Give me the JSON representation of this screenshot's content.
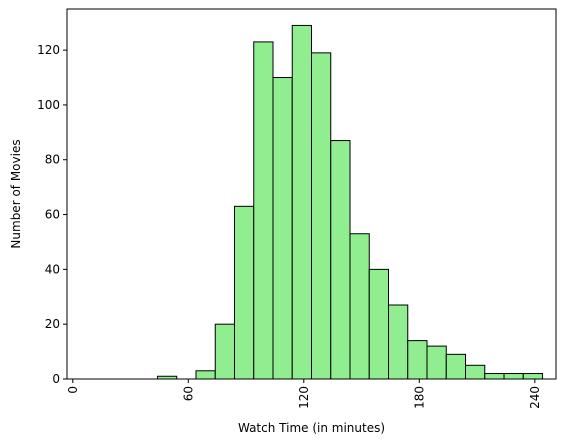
{
  "chart_data": {
    "type": "bar",
    "title": "",
    "xlabel": "Watch Time (in minutes)",
    "ylabel": "Number of Movies",
    "xlim": [
      -3,
      251
    ],
    "ylim": [
      0,
      135
    ],
    "grid": false,
    "bar_color": "#90ee90",
    "edge_color": "#000000",
    "x_ticks": [
      {
        "value": 0,
        "label": "0"
      },
      {
        "value": 60,
        "label": "60"
      },
      {
        "value": 120,
        "label": "120"
      },
      {
        "value": 180,
        "label": "180"
      },
      {
        "value": 240,
        "label": "240"
      }
    ],
    "y_ticks": [
      {
        "value": 0,
        "label": "0"
      },
      {
        "value": 20,
        "label": "20"
      },
      {
        "value": 40,
        "label": "40"
      },
      {
        "value": 60,
        "label": "60"
      },
      {
        "value": 80,
        "label": "80"
      },
      {
        "value": 100,
        "label": "100"
      },
      {
        "value": 120,
        "label": "120"
      }
    ],
    "bins": [
      {
        "x0": 44,
        "x1": 54,
        "count": 1
      },
      {
        "x0": 54,
        "x1": 64,
        "count": 0
      },
      {
        "x0": 64,
        "x1": 74,
        "count": 3
      },
      {
        "x0": 74,
        "x1": 84,
        "count": 20
      },
      {
        "x0": 84,
        "x1": 94,
        "count": 63
      },
      {
        "x0": 94,
        "x1": 104,
        "count": 123
      },
      {
        "x0": 104,
        "x1": 114,
        "count": 110
      },
      {
        "x0": 114,
        "x1": 124,
        "count": 129
      },
      {
        "x0": 124,
        "x1": 134,
        "count": 119
      },
      {
        "x0": 134,
        "x1": 144,
        "count": 87
      },
      {
        "x0": 144,
        "x1": 154,
        "count": 53
      },
      {
        "x0": 154,
        "x1": 164,
        "count": 40
      },
      {
        "x0": 164,
        "x1": 174,
        "count": 27
      },
      {
        "x0": 174,
        "x1": 184,
        "count": 14
      },
      {
        "x0": 184,
        "x1": 194,
        "count": 12
      },
      {
        "x0": 194,
        "x1": 204,
        "count": 9
      },
      {
        "x0": 204,
        "x1": 214,
        "count": 5
      },
      {
        "x0": 214,
        "x1": 224,
        "count": 2
      },
      {
        "x0": 224,
        "x1": 234,
        "count": 2
      },
      {
        "x0": 234,
        "x1": 244,
        "count": 2
      }
    ]
  }
}
